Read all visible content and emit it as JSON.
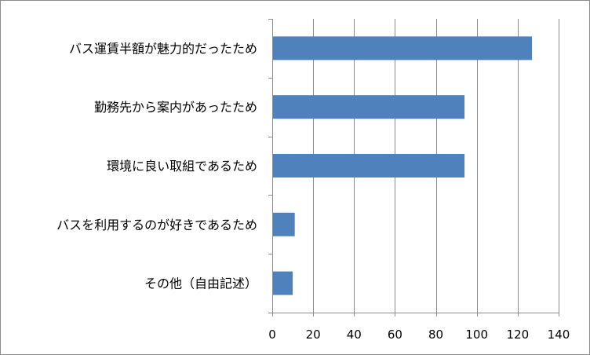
{
  "chart_data": {
    "type": "bar",
    "orientation": "horizontal",
    "categories": [
      "バス運賃半額が魅力的だったため",
      "勤務先から案内があったため",
      "環境に良い取組であるため",
      "バスを利用するのが好きであるため",
      "その他（自由記述）"
    ],
    "values": [
      127,
      94,
      94,
      11,
      10
    ],
    "xlim": [
      0,
      140
    ],
    "x_ticks": [
      0,
      20,
      40,
      60,
      80,
      100,
      120,
      140
    ],
    "grid": "vertical",
    "legend": "none",
    "title": "",
    "xlabel": "",
    "ylabel": "",
    "bar_color": "#4f81bd"
  }
}
